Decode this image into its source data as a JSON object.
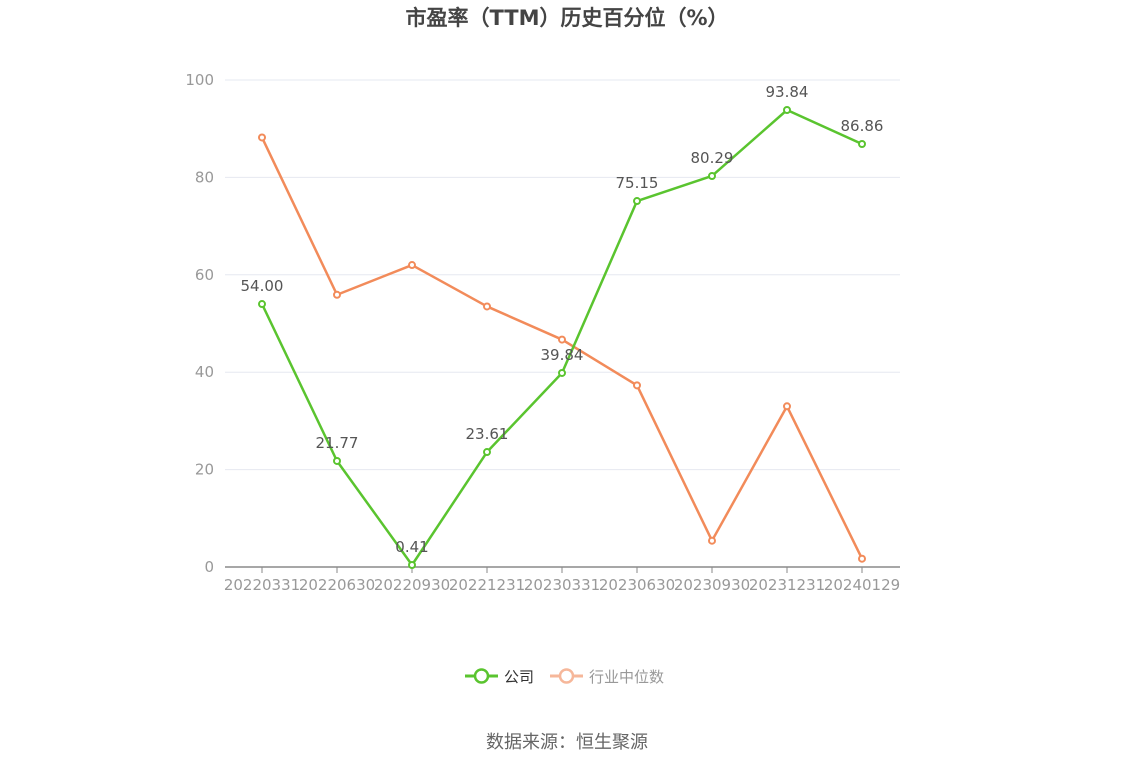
{
  "chart_data": {
    "type": "line",
    "title": "市盈率（TTM）历史百分位（%）",
    "x": [
      "20220331",
      "20220630",
      "20220930",
      "20221231",
      "20230331",
      "20230630",
      "20230930",
      "20231231",
      "20240129"
    ],
    "ylim": [
      0,
      100
    ],
    "yticks": [
      "0",
      "20",
      "40",
      "60",
      "80",
      "100"
    ],
    "grid": true,
    "legend_position": "bottom-center",
    "series": [
      {
        "name": "公司",
        "color": "#5ac42f",
        "values": [
          54.0,
          21.77,
          0.41,
          23.61,
          39.84,
          75.15,
          80.29,
          93.84,
          86.86
        ],
        "labels": [
          "54.00",
          "21.77",
          "0.41",
          "23.61",
          "39.84",
          "75.15",
          "80.29",
          "93.84",
          "86.86"
        ]
      },
      {
        "name": "行业中位数",
        "color": "#f28b5a",
        "legend_color": "#f6b79a",
        "values": [
          88.2,
          55.9,
          62.0,
          53.5,
          46.7,
          37.3,
          5.4,
          33.0,
          1.7
        ]
      }
    ]
  },
  "source": "数据来源：恒生聚源"
}
